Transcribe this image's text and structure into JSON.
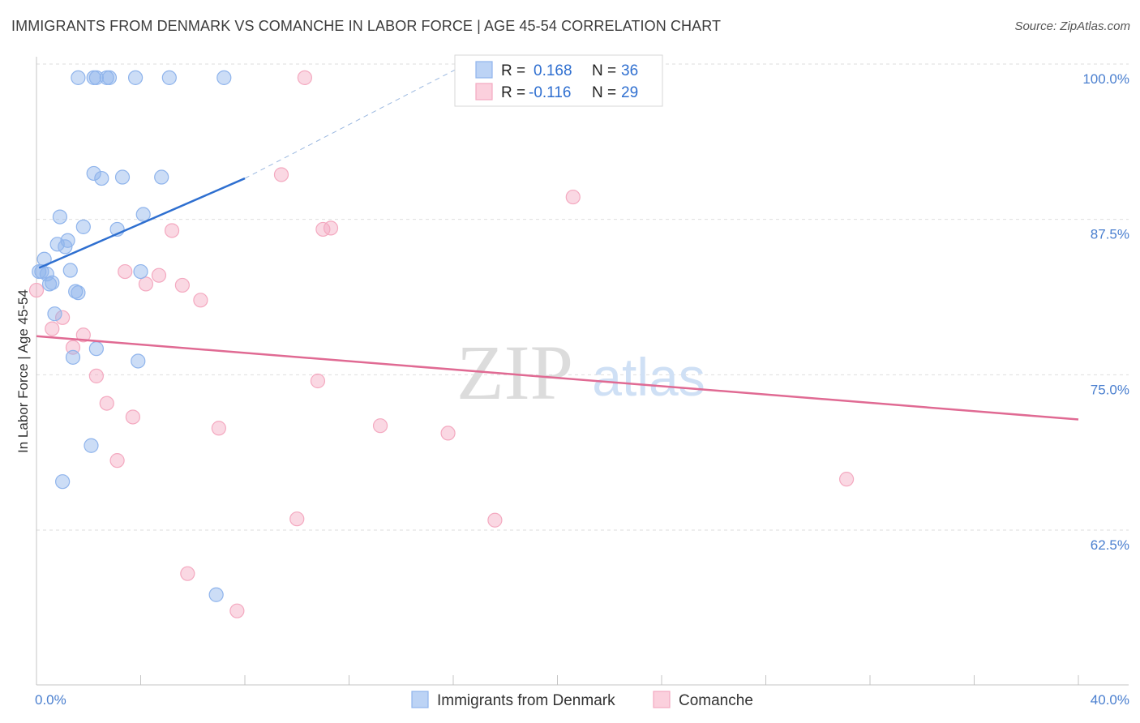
{
  "header": {
    "title": "IMMIGRANTS FROM DENMARK VS COMANCHE IN LABOR FORCE | AGE 45-54 CORRELATION CHART",
    "source": "Source: ZipAtlas.com"
  },
  "watermark": {
    "zip": "ZIP",
    "atlas": "atlas"
  },
  "legend": {
    "r_label": "R =",
    "n_label": "N =",
    "rows": [
      {
        "r": "0.168",
        "n": "36"
      },
      {
        "r": "-0.116",
        "n": "29"
      }
    ]
  },
  "chart_data": {
    "type": "scatter",
    "title": "IMMIGRANTS FROM DENMARK VS COMANCHE IN LABOR FORCE | AGE 45-54 CORRELATION CHART",
    "xlabel": "",
    "ylabel": "In Labor Force | Age 45-54",
    "xlim": [
      0,
      40
    ],
    "ylim": [
      51,
      101.5
    ],
    "x_tick_labels": [
      "0.0%",
      "40.0%"
    ],
    "y_tick_labels": [
      "100.0%",
      "87.5%",
      "75.0%",
      "62.5%"
    ],
    "y_ticks": [
      100,
      87.5,
      75,
      62.5
    ],
    "grid": true,
    "legend_position": "top-center",
    "series": [
      {
        "name": "Immigrants from Denmark",
        "color": "#8fb4ec",
        "line_color": "#2e6fd0",
        "trend": {
          "x0": 0.1,
          "y0": 83.6,
          "x1": 8.0,
          "y1": 90.8,
          "dash_to_x": 16.5,
          "dash_to_y": 100.0
        },
        "points": [
          [
            1.6,
            98.9
          ],
          [
            2.2,
            98.9
          ],
          [
            2.3,
            98.9
          ],
          [
            2.7,
            98.9
          ],
          [
            2.8,
            98.9
          ],
          [
            3.8,
            98.9
          ],
          [
            5.1,
            98.9
          ],
          [
            7.2,
            98.9
          ],
          [
            2.2,
            91.2
          ],
          [
            2.5,
            90.8
          ],
          [
            3.3,
            90.9
          ],
          [
            4.8,
            90.9
          ],
          [
            0.9,
            87.7
          ],
          [
            4.1,
            87.9
          ],
          [
            1.8,
            86.9
          ],
          [
            3.1,
            86.7
          ],
          [
            1.2,
            85.8
          ],
          [
            0.8,
            85.5
          ],
          [
            1.1,
            85.3
          ],
          [
            0.3,
            84.3
          ],
          [
            0.2,
            83.3
          ],
          [
            0.4,
            83.1
          ],
          [
            1.3,
            83.4
          ],
          [
            4.0,
            83.3
          ],
          [
            0.6,
            82.4
          ],
          [
            0.5,
            82.3
          ],
          [
            1.5,
            81.7
          ],
          [
            1.6,
            81.6
          ],
          [
            0.7,
            79.9
          ],
          [
            2.3,
            77.1
          ],
          [
            1.4,
            76.4
          ],
          [
            3.9,
            76.1
          ],
          [
            2.1,
            69.3
          ],
          [
            1.0,
            66.4
          ],
          [
            6.9,
            57.3
          ],
          [
            0.1,
            83.3
          ]
        ]
      },
      {
        "name": "Comanche",
        "color": "#f4a9c0",
        "line_color": "#e06a93",
        "trend": {
          "x0": 0.0,
          "y0": 78.1,
          "x1": 40.0,
          "y1": 71.4
        },
        "points": [
          [
            10.3,
            98.9
          ],
          [
            9.4,
            91.1
          ],
          [
            20.6,
            89.3
          ],
          [
            5.2,
            86.6
          ],
          [
            11.0,
            86.7
          ],
          [
            11.3,
            86.8
          ],
          [
            3.4,
            83.3
          ],
          [
            4.7,
            83.0
          ],
          [
            4.2,
            82.3
          ],
          [
            5.6,
            82.2
          ],
          [
            6.3,
            81.0
          ],
          [
            1.0,
            79.6
          ],
          [
            0.6,
            78.7
          ],
          [
            1.8,
            78.2
          ],
          [
            1.4,
            77.2
          ],
          [
            2.3,
            74.9
          ],
          [
            10.8,
            74.5
          ],
          [
            2.7,
            72.7
          ],
          [
            3.7,
            71.6
          ],
          [
            7.0,
            70.7
          ],
          [
            13.2,
            70.9
          ],
          [
            15.8,
            70.3
          ],
          [
            3.1,
            68.1
          ],
          [
            31.1,
            66.6
          ],
          [
            10.0,
            63.4
          ],
          [
            17.6,
            63.3
          ],
          [
            5.8,
            59.0
          ],
          [
            7.7,
            56.0
          ],
          [
            0.0,
            81.8
          ]
        ]
      }
    ]
  }
}
